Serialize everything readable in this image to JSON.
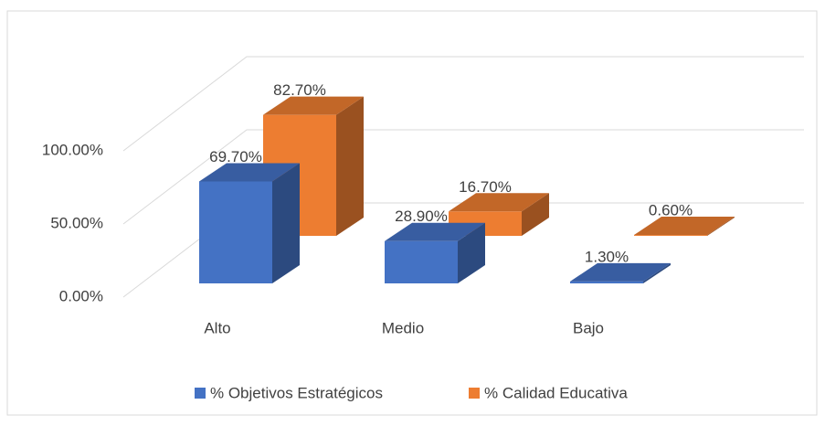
{
  "chart_data": {
    "type": "bar3d",
    "categories": [
      "Alto",
      "Medio",
      "Bajo"
    ],
    "series": [
      {
        "name": "% Objetivos Estratégicos",
        "color": "#4472c4",
        "values": [
          69.7,
          28.9,
          1.3
        ],
        "value_labels": [
          "69.70%",
          "28.90%",
          "1.30%"
        ]
      },
      {
        "name": "% Calidad Educativa",
        "color": "#ed7d31",
        "values": [
          82.7,
          16.7,
          0.6
        ],
        "value_labels": [
          "82.70%",
          "16.70%",
          "0.60%"
        ]
      }
    ],
    "ylim": [
      0,
      100
    ],
    "yticks": [
      {
        "value": 0,
        "label": "0.00%"
      },
      {
        "value": 50,
        "label": "50.00%"
      },
      {
        "value": 100,
        "label": "100.00%"
      }
    ],
    "grid": true,
    "legend": "bottom"
  }
}
